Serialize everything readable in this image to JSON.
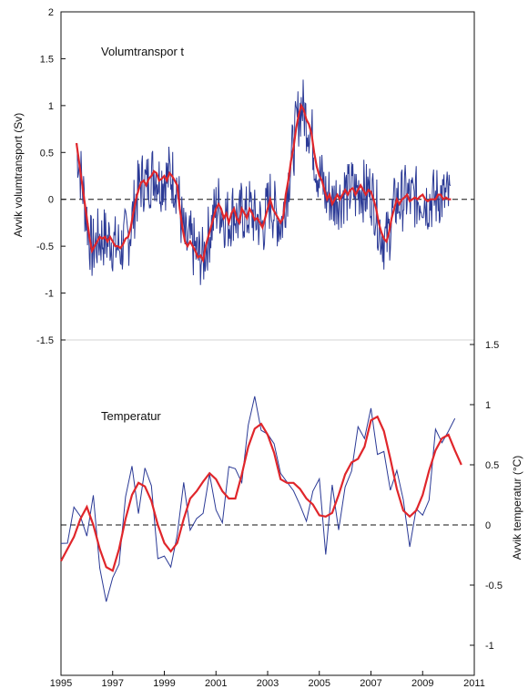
{
  "chart_data": [
    {
      "type": "line",
      "title": "Volumtranspor t",
      "xlabel": "",
      "ylabel": "Avvik volumtransport  (Sv)",
      "xlim": [
        1995,
        2011
      ],
      "ylim": [
        -1.5,
        2
      ],
      "yticks": [
        "-1.5",
        "-1",
        "-0.5",
        "0",
        "0.5",
        "1",
        "1.5",
        "2"
      ],
      "zero_line": "dashed",
      "colors": {
        "raw": "#2b3a96",
        "smooth": "#e0262b"
      },
      "series": [
        {
          "x": [
            1995.6,
            1995.7,
            1995.8,
            1995.9,
            1996.0,
            1996.1,
            1996.2,
            1996.3,
            1996.4,
            1996.5,
            1996.6,
            1996.7,
            1996.8,
            1996.9,
            1997.0,
            1997.1,
            1997.2,
            1997.3,
            1997.4,
            1997.5,
            1997.6,
            1997.7,
            1997.8,
            1997.9,
            1998.0,
            1998.1,
            1998.2,
            1998.3,
            1998.4,
            1998.5,
            1998.6,
            1998.7,
            1998.8,
            1998.9,
            1999.0,
            1999.1,
            1999.2,
            1999.3,
            1999.4,
            1999.5,
            1999.6,
            1999.7,
            1999.8,
            1999.9,
            2000.0,
            2000.1,
            2000.2,
            2000.3,
            2000.4,
            2000.5,
            2000.6,
            2000.7,
            2000.8,
            2000.9,
            2001.0,
            2001.1,
            2001.2,
            2001.3,
            2001.4,
            2001.5,
            2001.6,
            2001.7,
            2001.8,
            2001.9,
            2002.0,
            2002.1,
            2002.2,
            2002.3,
            2002.4,
            2002.5,
            2002.6,
            2002.7,
            2002.8,
            2002.9,
            2003.0,
            2003.1,
            2003.2,
            2003.3,
            2003.4,
            2003.5,
            2003.6,
            2003.7,
            2003.8,
            2003.9,
            2004.0,
            2004.1,
            2004.2,
            2004.3,
            2004.4,
            2004.5,
            2004.6,
            2004.7,
            2004.8,
            2004.9,
            2005.0,
            2005.1,
            2005.2,
            2005.3,
            2005.4,
            2005.5,
            2005.6,
            2005.7,
            2005.8,
            2005.9,
            2006.0,
            2006.1,
            2006.2,
            2006.3,
            2006.4,
            2006.5,
            2006.6,
            2006.7,
            2006.8,
            2006.9,
            2007.0,
            2007.1,
            2007.2,
            2007.3,
            2007.4,
            2007.5,
            2007.6,
            2007.7,
            2007.8,
            2007.9,
            2008.0,
            2008.1,
            2008.2,
            2008.3,
            2008.4,
            2008.5,
            2008.6,
            2008.7,
            2008.8,
            2008.9,
            2009.0,
            2009.1,
            2009.2,
            2009.3,
            2009.4,
            2009.5,
            2009.6,
            2009.7,
            2009.8,
            2009.9,
            2010.0,
            2010.1
          ],
          "y": [
            0.6,
            0.4,
            0.2,
            0.0,
            -0.2,
            -0.4,
            -0.55,
            -0.5,
            -0.45,
            -0.4,
            -0.42,
            -0.4,
            -0.45,
            -0.4,
            -0.45,
            -0.5,
            -0.5,
            -0.52,
            -0.48,
            -0.42,
            -0.4,
            -0.3,
            -0.15,
            0.0,
            0.1,
            0.18,
            0.2,
            0.15,
            0.22,
            0.25,
            0.3,
            0.28,
            0.2,
            0.22,
            0.25,
            0.2,
            0.28,
            0.25,
            0.2,
            0.15,
            -0.1,
            -0.3,
            -0.45,
            -0.5,
            -0.45,
            -0.5,
            -0.55,
            -0.62,
            -0.6,
            -0.65,
            -0.5,
            -0.4,
            -0.3,
            -0.2,
            -0.1,
            -0.05,
            -0.1,
            -0.2,
            -0.15,
            -0.25,
            -0.15,
            -0.1,
            -0.2,
            -0.25,
            -0.1,
            -0.15,
            -0.2,
            -0.1,
            -0.15,
            -0.22,
            -0.2,
            -0.25,
            -0.3,
            -0.2,
            -0.1,
            0.0,
            -0.1,
            -0.15,
            -0.2,
            -0.25,
            -0.2,
            0.05,
            0.2,
            0.4,
            0.55,
            0.75,
            0.9,
            1.0,
            0.95,
            0.85,
            0.8,
            0.7,
            0.5,
            0.35,
            0.25,
            0.2,
            0.1,
            0.0,
            0.05,
            -0.05,
            0.0,
            0.05,
            0.0,
            0.05,
            0.1,
            0.05,
            0.1,
            0.12,
            0.05,
            0.1,
            0.15,
            0.1,
            0.05,
            0.1,
            0.08,
            0.0,
            -0.1,
            -0.25,
            -0.35,
            -0.42,
            -0.45,
            -0.35,
            -0.2,
            -0.1,
            0.0,
            -0.05,
            0.0,
            0.02,
            0.05,
            -0.02,
            0.0,
            0.02,
            0.0,
            0.03,
            0.05,
            0.0,
            -0.02,
            0.0,
            0.0,
            0.0,
            0.05,
            0.05,
            0.0,
            0.02,
            0.0,
            0.0
          ]
        }
      ]
    },
    {
      "type": "line",
      "title": "Temperatur",
      "xlabel": "",
      "ylabel": "Avvik temperatur  (°C)",
      "xlim": [
        1995,
        2011
      ],
      "ylim": [
        -1.25,
        1.5
      ],
      "yticks": [
        "-1",
        "-0.5",
        "0",
        "0.5",
        "1",
        "1.5"
      ],
      "xticks": [
        "1995",
        "1997",
        "1999",
        "2001",
        "2003",
        "2005",
        "2007",
        "2009",
        "2011"
      ],
      "zero_line": "dashed",
      "series": [
        {
          "x": [
            1995.0,
            1995.25,
            1995.5,
            1995.75,
            1996.0,
            1996.25,
            1996.5,
            1996.75,
            1997.0,
            1997.25,
            1997.5,
            1997.75,
            1998.0,
            1998.25,
            1998.5,
            1998.75,
            1999.0,
            1999.25,
            1999.5,
            1999.75,
            2000.0,
            2000.25,
            2000.5,
            2000.75,
            2001.0,
            2001.25,
            2001.5,
            2001.75,
            2002.0,
            2002.25,
            2002.5,
            2002.75,
            2003.0,
            2003.25,
            2003.5,
            2003.75,
            2004.0,
            2004.25,
            2004.5,
            2004.75,
            2005.0,
            2005.25,
            2005.5,
            2005.75,
            2006.0,
            2006.25,
            2006.5,
            2006.75,
            2007.0,
            2007.25,
            2007.5,
            2007.75,
            2008.0,
            2008.25,
            2008.5,
            2008.75,
            2009.0,
            2009.25,
            2009.5,
            2009.75,
            2010.0,
            2010.25,
            2010.5
          ],
          "y": [
            -0.3,
            -0.2,
            -0.1,
            0.05,
            0.15,
            0.0,
            -0.2,
            -0.35,
            -0.38,
            -0.2,
            0.05,
            0.25,
            0.35,
            0.32,
            0.2,
            0.0,
            -0.15,
            -0.22,
            -0.15,
            0.05,
            0.22,
            0.28,
            0.36,
            0.43,
            0.38,
            0.28,
            0.22,
            0.22,
            0.42,
            0.65,
            0.8,
            0.84,
            0.75,
            0.6,
            0.38,
            0.35,
            0.35,
            0.3,
            0.22,
            0.17,
            0.08,
            0.07,
            0.1,
            0.25,
            0.42,
            0.52,
            0.55,
            0.65,
            0.87,
            0.9,
            0.78,
            0.55,
            0.3,
            0.12,
            0.07,
            0.12,
            0.25,
            0.45,
            0.62,
            0.72,
            0.75,
            0.62,
            0.5
          ]
        }
      ]
    }
  ]
}
